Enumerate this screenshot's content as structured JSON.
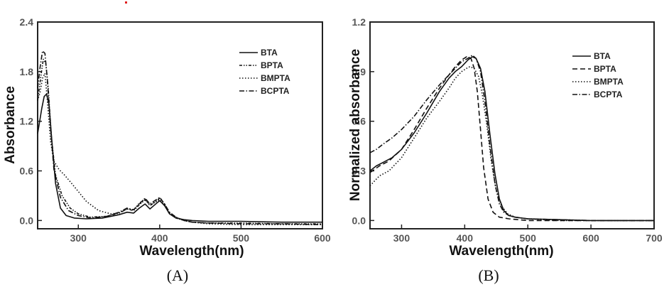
{
  "colors": {
    "line": "#111111",
    "axis": "#222222",
    "tick_text": "#555555",
    "mark": "#e02020"
  },
  "chart_data": [
    {
      "type": "line",
      "panel_label": "(A)",
      "xlabel": "Wavelength(nm)",
      "ylabel": "Absorbance",
      "xlim": [
        250,
        600
      ],
      "ylim": [
        -0.1,
        2.4
      ],
      "xticks": [
        300,
        400,
        500,
        600
      ],
      "xtick_labels": [
        "300",
        "400",
        "500",
        "600"
      ],
      "yticks": [
        0.0,
        0.6,
        1.2,
        1.8,
        2.4
      ],
      "ytick_labels": [
        "0.0",
        "0.6",
        "1.2",
        "1.8",
        "2.4"
      ],
      "legend_position": "top-right",
      "grid": false,
      "series": [
        {
          "name": "BTA",
          "dash": "solid",
          "x": [
            250,
            255,
            258,
            261,
            264,
            268,
            272,
            278,
            285,
            295,
            310,
            330,
            350,
            360,
            368,
            375,
            382,
            388,
            394,
            400,
            406,
            412,
            420,
            430,
            440,
            460,
            500,
            550,
            600
          ],
          "y": [
            1.05,
            1.35,
            1.5,
            1.53,
            1.4,
            0.9,
            0.45,
            0.15,
            0.06,
            0.03,
            0.02,
            0.03,
            0.07,
            0.1,
            0.09,
            0.15,
            0.2,
            0.14,
            0.19,
            0.24,
            0.18,
            0.08,
            0.03,
            0.01,
            0.0,
            -0.01,
            -0.01,
            -0.02,
            -0.02
          ]
        },
        {
          "name": "BPTA",
          "dash": "4 2 1.5 2 1.5 2",
          "x": [
            250,
            254,
            257,
            260,
            263,
            267,
            272,
            280,
            290,
            300,
            315,
            335,
            350,
            360,
            368,
            375,
            382,
            388,
            394,
            400,
            406,
            412,
            420,
            430,
            440,
            460,
            500,
            550,
            600
          ],
          "y": [
            1.45,
            1.75,
            1.95,
            1.9,
            1.6,
            1.0,
            0.55,
            0.3,
            0.15,
            0.08,
            0.04,
            0.05,
            0.09,
            0.14,
            0.12,
            0.19,
            0.25,
            0.18,
            0.22,
            0.27,
            0.2,
            0.09,
            0.03,
            0.0,
            -0.02,
            -0.03,
            -0.03,
            -0.04,
            -0.04
          ]
        },
        {
          "name": "BMPTA",
          "dash": "1.5 2.5",
          "x": [
            250,
            253,
            256,
            259,
            262,
            266,
            270,
            276,
            283,
            290,
            300,
            310,
            325,
            340,
            350,
            360,
            368,
            375,
            382,
            388,
            394,
            400,
            406,
            412,
            420,
            430,
            440,
            460,
            500,
            550,
            600
          ],
          "y": [
            1.45,
            1.55,
            1.72,
            1.78,
            1.45,
            0.95,
            0.72,
            0.62,
            0.55,
            0.47,
            0.35,
            0.23,
            0.12,
            0.08,
            0.09,
            0.14,
            0.13,
            0.21,
            0.26,
            0.19,
            0.22,
            0.25,
            0.18,
            0.1,
            0.04,
            0.0,
            -0.02,
            -0.04,
            -0.05,
            -0.05,
            -0.05
          ]
        },
        {
          "name": "BCPTA",
          "dash": "7 2.5 1.5 2.5",
          "x": [
            250,
            253,
            256,
            259,
            262,
            266,
            270,
            278,
            288,
            300,
            315,
            335,
            350,
            360,
            368,
            375,
            382,
            388,
            394,
            400,
            406,
            412,
            420,
            430,
            440,
            460,
            500,
            550,
            600
          ],
          "y": [
            1.6,
            1.85,
            2.05,
            2.02,
            1.7,
            1.1,
            0.62,
            0.28,
            0.12,
            0.06,
            0.03,
            0.05,
            0.1,
            0.15,
            0.13,
            0.2,
            0.27,
            0.2,
            0.24,
            0.28,
            0.2,
            0.1,
            0.04,
            0.0,
            -0.02,
            -0.03,
            -0.04,
            -0.04,
            -0.05
          ]
        }
      ]
    },
    {
      "type": "line",
      "panel_label": "(B)",
      "xlabel": "Wavelength(nm)",
      "ylabel": "Normalized absorbance",
      "xlim": [
        250,
        700
      ],
      "ylim": [
        -0.05,
        1.2
      ],
      "xticks": [
        300,
        400,
        500,
        600,
        700
      ],
      "xtick_labels": [
        "300",
        "400",
        "500",
        "600",
        "700"
      ],
      "yticks": [
        0.0,
        0.3,
        0.6,
        0.9,
        1.2
      ],
      "ytick_labels": [
        "0.0",
        "0.3",
        "0.6",
        "0.9",
        "1.2"
      ],
      "legend_position": "top-right",
      "grid": false,
      "series": [
        {
          "name": "BTA",
          "dash": "solid",
          "x": [
            250,
            260,
            270,
            285,
            300,
            320,
            340,
            360,
            375,
            385,
            395,
            405,
            412,
            418,
            425,
            432,
            440,
            448,
            455,
            462,
            470,
            480,
            500,
            550,
            600,
            650,
            700
          ],
          "y": [
            0.3,
            0.33,
            0.35,
            0.38,
            0.43,
            0.53,
            0.65,
            0.78,
            0.86,
            0.9,
            0.93,
            0.97,
            0.99,
            0.98,
            0.92,
            0.78,
            0.52,
            0.28,
            0.13,
            0.06,
            0.03,
            0.02,
            0.01,
            0.005,
            0.0,
            0.0,
            0.0
          ]
        },
        {
          "name": "BPTA",
          "dash": "7 4",
          "x": [
            250,
            265,
            280,
            300,
            320,
            340,
            360,
            375,
            385,
            395,
            403,
            410,
            415,
            420,
            425,
            430,
            437,
            445,
            455,
            470,
            500,
            550,
            600,
            650,
            700
          ],
          "y": [
            0.29,
            0.33,
            0.36,
            0.43,
            0.55,
            0.68,
            0.8,
            0.88,
            0.93,
            0.97,
            0.99,
            0.98,
            0.92,
            0.78,
            0.55,
            0.32,
            0.13,
            0.05,
            0.02,
            0.01,
            0.0,
            0.0,
            0.0,
            0.0,
            0.0
          ]
        },
        {
          "name": "BMPTA",
          "dash": "1.5 2.5",
          "x": [
            250,
            265,
            280,
            300,
            320,
            340,
            360,
            375,
            385,
            395,
            403,
            408,
            415,
            422,
            428,
            435,
            442,
            450,
            458,
            468,
            480,
            500,
            550,
            600,
            650,
            700
          ],
          "y": [
            0.21,
            0.27,
            0.3,
            0.38,
            0.5,
            0.62,
            0.72,
            0.8,
            0.86,
            0.9,
            0.92,
            0.93,
            0.92,
            0.87,
            0.76,
            0.58,
            0.36,
            0.18,
            0.09,
            0.04,
            0.02,
            0.01,
            0.0,
            0.0,
            0.0,
            0.0
          ]
        },
        {
          "name": "BCPTA",
          "dash": "7 2.5 1.5 2.5",
          "x": [
            250,
            260,
            270,
            285,
            300,
            320,
            340,
            360,
            375,
            385,
            395,
            405,
            412,
            418,
            425,
            432,
            440,
            448,
            455,
            462,
            470,
            480,
            500,
            550,
            600,
            650,
            700
          ],
          "y": [
            0.41,
            0.43,
            0.46,
            0.5,
            0.55,
            0.63,
            0.73,
            0.82,
            0.88,
            0.92,
            0.96,
            0.98,
            1.0,
            0.98,
            0.9,
            0.72,
            0.45,
            0.22,
            0.1,
            0.05,
            0.03,
            0.02,
            0.01,
            0.005,
            0.0,
            0.0,
            0.0
          ]
        }
      ]
    }
  ]
}
